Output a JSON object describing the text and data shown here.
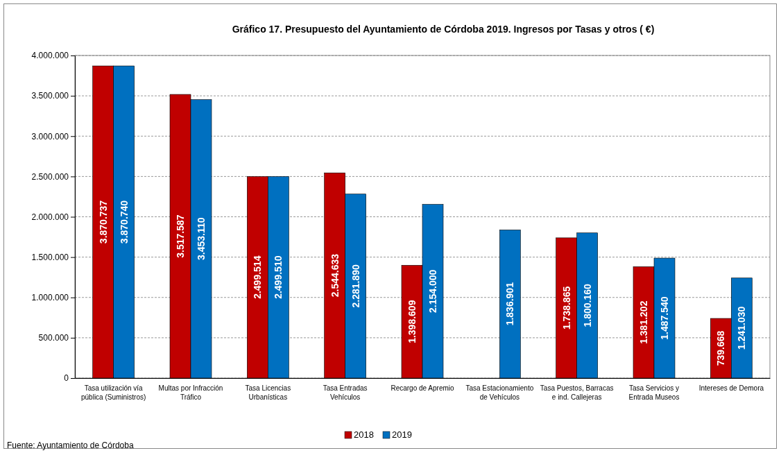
{
  "chart_data": {
    "type": "bar",
    "title": "Gráfico 17. Presupuesto del Ayuntamiento de Córdoba 2019.  Ingresos por Tasas y otros (  €)",
    "categories": [
      "Tasa utilización vía pública (Suministros)",
      "Multas por Infracción Tráfico",
      "Tasa Licencias Urbanísticas",
      "Tasa Entradas Vehículos",
      "Recargo de Apremio",
      "Tasa Estacionamiento de Vehículos",
      "Tasa Puestos, Barracas e ind. Callejeras",
      "Tasa Servicios y Entrada Museos",
      "Intereses de Demora"
    ],
    "series": [
      {
        "name": "2018",
        "color": "#c00000",
        "values": [
          3870737,
          3517587,
          2499514,
          2544633,
          1398609,
          null,
          1738865,
          1381202,
          739668
        ],
        "value_labels": [
          "3.870.737",
          "3.517.587",
          "2.499.514",
          "2.544.633",
          "1.398.609",
          null,
          "1.738.865",
          "1.381.202",
          "739.668"
        ]
      },
      {
        "name": "2019",
        "color": "#0070c0",
        "values": [
          3870740,
          3453110,
          2499510,
          2281890,
          2154000,
          1836901,
          1800160,
          1487540,
          1241030
        ],
        "value_labels": [
          "3.870.740",
          "3.453.110",
          "2.499.510",
          "2.281.890",
          "2.154.000",
          "1.836.901",
          "1.800.160",
          "1.487.540",
          "1.241.030"
        ]
      }
    ],
    "ylim": [
      0,
      4000000
    ],
    "yticks": [
      0,
      {
        "value": 500000,
        "label": "500.000"
      },
      {
        "value": 1000000,
        "label": "1.000.000"
      },
      {
        "value": 1500000,
        "label": "1.500.000"
      },
      {
        "value": 2000000,
        "label": "2.000.000"
      },
      {
        "value": 2500000,
        "label": "2.500.000"
      },
      {
        "value": 3000000,
        "label": "3.000.000"
      },
      {
        "value": 3500000,
        "label": "3.500.000"
      },
      {
        "value": 4000000,
        "label": "4.000.000"
      }
    ],
    "grid": "y",
    "legend": "bottom",
    "annotations": [
      "Fuente: Ayuntamiento de Córdoba"
    ]
  }
}
